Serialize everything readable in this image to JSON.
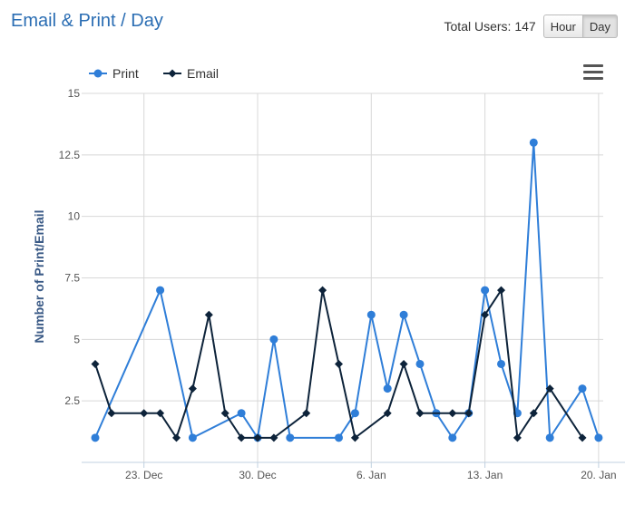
{
  "header": {
    "title": "Email & Print / Day",
    "total_users_label": "Total Users: 147",
    "buttons": {
      "hour": "Hour",
      "day": "Day"
    }
  },
  "menu": {
    "icon": "hamburger-menu-icon"
  },
  "colors": {
    "print": "#2f7ed8",
    "email": "#0d233a",
    "grid": "#d8d8d8",
    "axis": "#c0d0e0"
  },
  "chart_data": {
    "type": "line",
    "ylabel": "Number of Print/Email",
    "ylim": [
      0,
      15
    ],
    "yticks": [
      2.5,
      5,
      7.5,
      10,
      12.5,
      15
    ],
    "ytick_labels": [
      "2.5",
      "5",
      "7.5",
      "10",
      "12.5",
      "15"
    ],
    "xticks": [
      {
        "day": 23,
        "label": "23. Dec"
      },
      {
        "day": 30,
        "label": "30. Dec"
      },
      {
        "day": 37,
        "label": "6. Jan"
      },
      {
        "day": 44,
        "label": "13. Jan"
      },
      {
        "day": 51,
        "label": "20. Jan"
      }
    ],
    "xlim": [
      19,
      51
    ],
    "legend": {
      "position": "top-left"
    },
    "grid": true,
    "series": [
      {
        "name": "Print",
        "points": [
          [
            20,
            1
          ],
          [
            24,
            7
          ],
          [
            26,
            1
          ],
          [
            29,
            2
          ],
          [
            30,
            1
          ],
          [
            31,
            5
          ],
          [
            32,
            1
          ],
          [
            35,
            1
          ],
          [
            36,
            2
          ],
          [
            37,
            6
          ],
          [
            38,
            3
          ],
          [
            39,
            6
          ],
          [
            40,
            4
          ],
          [
            41,
            2
          ],
          [
            42,
            1
          ],
          [
            43,
            2
          ],
          [
            44,
            7
          ],
          [
            45,
            4
          ],
          [
            46,
            2
          ],
          [
            47,
            13
          ],
          [
            48,
            1
          ],
          [
            50,
            3
          ],
          [
            51,
            1
          ]
        ]
      },
      {
        "name": "Email",
        "points": [
          [
            20,
            4
          ],
          [
            21,
            2
          ],
          [
            23,
            2
          ],
          [
            24,
            2
          ],
          [
            25,
            1
          ],
          [
            26,
            3
          ],
          [
            27,
            6
          ],
          [
            28,
            2
          ],
          [
            29,
            1
          ],
          [
            30,
            1
          ],
          [
            31,
            1
          ],
          [
            33,
            2
          ],
          [
            34,
            7
          ],
          [
            35,
            4
          ],
          [
            36,
            1
          ],
          [
            38,
            2
          ],
          [
            39,
            4
          ],
          [
            40,
            2
          ],
          [
            42,
            2
          ],
          [
            43,
            2
          ],
          [
            44,
            6
          ],
          [
            45,
            7
          ],
          [
            46,
            1
          ],
          [
            47,
            2
          ],
          [
            48,
            3
          ],
          [
            50,
            1
          ]
        ]
      }
    ]
  }
}
